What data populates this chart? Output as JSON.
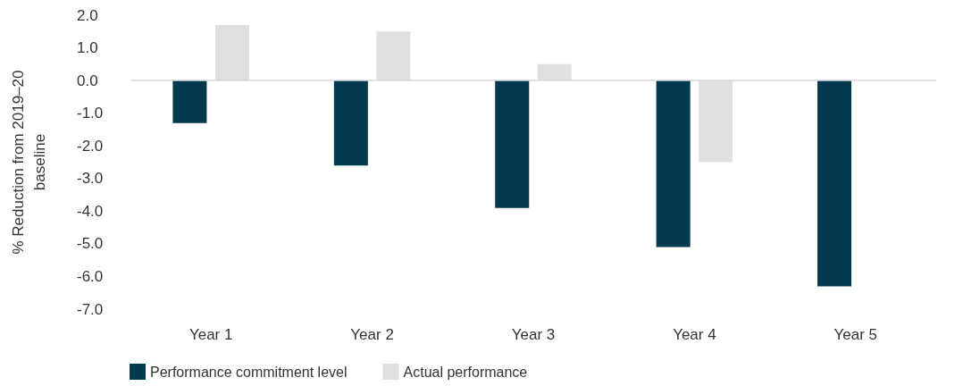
{
  "chart_data": {
    "type": "bar",
    "ylabel": "% Reduction from 2019–20 baseline",
    "categories": [
      "Year 1",
      "Year 2",
      "Year 3",
      "Year 4",
      "Year 5"
    ],
    "series": [
      {
        "name": "Performance commitment level",
        "color": "#033a4f",
        "values": [
          -1.3,
          -2.6,
          -3.9,
          -5.1,
          -6.3
        ]
      },
      {
        "name": "Actual performance",
        "color": "#dfe0e1",
        "values": [
          1.7,
          1.5,
          0.5,
          -2.5,
          null
        ]
      }
    ],
    "ylim": [
      -7,
      2
    ],
    "yticks": [
      {
        "value": -7,
        "label": "-7.0"
      },
      {
        "value": -6,
        "label": "-6.0"
      },
      {
        "value": -5,
        "label": "-5.0"
      },
      {
        "value": -4,
        "label": "-4.0"
      },
      {
        "value": -3,
        "label": "-3.0"
      },
      {
        "value": -2,
        "label": "-2.0"
      },
      {
        "value": -1,
        "label": "-1.0"
      },
      {
        "value": 0,
        "label": "0.0"
      },
      {
        "value": 1,
        "label": "1.0"
      },
      {
        "value": 2,
        "label": "2.0"
      }
    ],
    "ref_lines": [
      {
        "axis": "y",
        "value": 0,
        "color": "#d9d9d9"
      }
    ],
    "grid": false,
    "legend": "bottom left"
  }
}
